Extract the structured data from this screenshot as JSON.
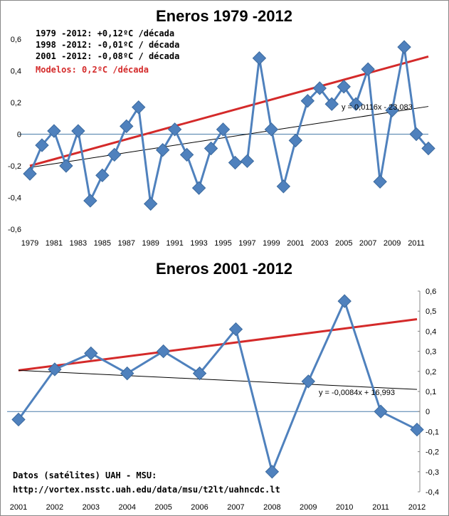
{
  "chart_data": [
    {
      "type": "line",
      "title": "Eneros 1979 -2012",
      "xlabel": "",
      "ylabel": "",
      "x": [
        1979,
        1980,
        1981,
        1982,
        1983,
        1984,
        1985,
        1986,
        1987,
        1988,
        1989,
        1990,
        1991,
        1992,
        1993,
        1994,
        1995,
        1996,
        1997,
        1998,
        1999,
        2000,
        2001,
        2002,
        2003,
        2004,
        2005,
        2006,
        2007,
        2008,
        2009,
        2010,
        2011,
        2012
      ],
      "x_tick_labels": [
        "1979",
        "1981",
        "1983",
        "1985",
        "1987",
        "1989",
        "1991",
        "1993",
        "1995",
        "1997",
        "1999",
        "2001",
        "2003",
        "2005",
        "2007",
        "2009",
        "2011"
      ],
      "ylim": [
        -0.6,
        0.6
      ],
      "y_tick_labels": [
        "0,6",
        "0,4",
        "0,2",
        "0",
        "-0,2",
        "-0,4",
        "-0,6"
      ],
      "series": [
        {
          "values": [
            -0.25,
            -0.07,
            0.02,
            -0.2,
            0.02,
            -0.42,
            -0.26,
            -0.13,
            0.05,
            0.17,
            -0.44,
            -0.1,
            0.03,
            -0.13,
            -0.34,
            -0.09,
            0.03,
            -0.18,
            -0.17,
            0.48,
            0.03,
            -0.33,
            -0.04,
            0.21,
            0.29,
            0.19,
            0.3,
            0.19,
            0.41,
            -0.3,
            0.15,
            0.55,
            0.0,
            -0.09
          ],
          "color": "#4F81BD"
        }
      ],
      "trendlines": [
        {
          "from": [
            1979,
            -0.2
          ],
          "to": [
            2012,
            0.49
          ],
          "color": "#D42A2A"
        },
        {
          "from": [
            1979,
            -0.21
          ],
          "to": [
            2012,
            0.175
          ],
          "color": "#000000",
          "label": "y = 0,0116x - 23,083"
        }
      ],
      "notes": [
        {
          "text": "1979 -2012: +0,12ºC /década",
          "color": "#000000"
        },
        {
          "text": "1998 -2012: -0,01ºC / década",
          "color": "#000000"
        },
        {
          "text": "2001 -2012: -0,08ºC / década",
          "color": "#000000"
        },
        {
          "text": "Modelos: 0,2ºC /década",
          "color": "#D42A2A"
        }
      ]
    },
    {
      "type": "line",
      "title": "Eneros 2001 -2012",
      "xlabel": "",
      "ylabel": "",
      "x": [
        2001,
        2002,
        2003,
        2004,
        2005,
        2006,
        2007,
        2008,
        2009,
        2010,
        2011,
        2012
      ],
      "x_tick_labels": [
        "2001",
        "2002",
        "2003",
        "2004",
        "2005",
        "2006",
        "2007",
        "2008",
        "2009",
        "2010",
        "2011",
        "2012"
      ],
      "ylim": [
        -0.4,
        0.6
      ],
      "y_tick_labels": [
        "0,6",
        "0,5",
        "0,4",
        "0,3",
        "0,2",
        "0,1",
        "0",
        "-0,1",
        "-0,2",
        "-0,3",
        "-0,4"
      ],
      "series": [
        {
          "values": [
            -0.04,
            0.21,
            0.29,
            0.19,
            0.3,
            0.19,
            0.41,
            -0.3,
            0.15,
            0.55,
            0.0,
            -0.09
          ],
          "color": "#4F81BD"
        }
      ],
      "trendlines": [
        {
          "from": [
            2001,
            0.205
          ],
          "to": [
            2012,
            0.46
          ],
          "color": "#D42A2A"
        },
        {
          "from": [
            2001,
            0.205
          ],
          "to": [
            2012,
            0.11
          ],
          "color": "#000000",
          "label": "y = -0,0084x + 16,993"
        }
      ]
    }
  ],
  "source_lines": [
    "Datos (satélites) UAH - MSU:",
    "http://vortex.nsstc.uah.edu/data/msu/t2lt/uahncdc.lt"
  ]
}
